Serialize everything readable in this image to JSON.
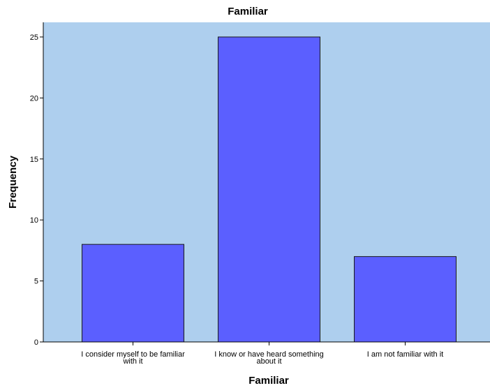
{
  "chart_data": {
    "type": "bar",
    "title": "Familiar",
    "xlabel": "Familiar",
    "ylabel": "Frequency",
    "categories": [
      [
        "I consider myself to be familiar",
        "with it"
      ],
      [
        "I know or have heard something",
        "about it"
      ],
      [
        "I am not familiar with it"
      ]
    ],
    "values": [
      8,
      25,
      7
    ],
    "ylim": [
      0,
      26.2
    ],
    "yticks": [
      0,
      5,
      10,
      15,
      20,
      25
    ],
    "grid": false,
    "colors": {
      "plot_background": "#aecfee",
      "bar_fill": "#5b5fff",
      "bar_stroke": "#1a1a1a",
      "axis": "#000000"
    }
  }
}
